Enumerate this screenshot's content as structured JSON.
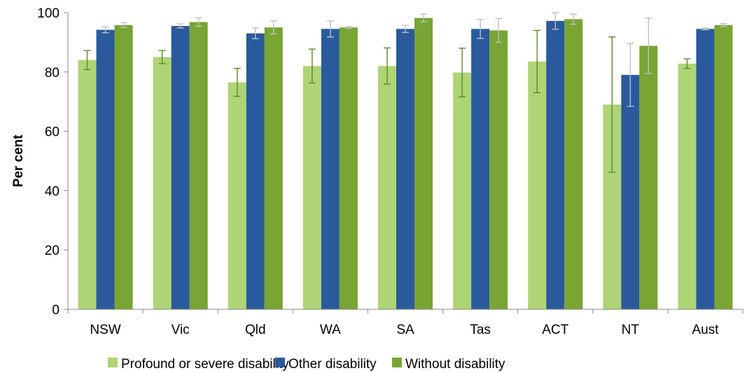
{
  "chart_data": {
    "type": "bar",
    "title": "",
    "xlabel": "",
    "ylabel": "Per cent",
    "ylim": [
      0,
      100
    ],
    "yticks": [
      0,
      20,
      40,
      60,
      80,
      100
    ],
    "grid": false,
    "legend_position": "bottom",
    "categories": [
      "NSW",
      "Vic",
      "Qld",
      "WA",
      "SA",
      "Tas",
      "ACT",
      "NT",
      "Aust"
    ],
    "series": [
      {
        "name": "Profound or severe disability",
        "color": "#AED475",
        "error_color": "#5A8A2A",
        "values": [
          84.0,
          85.0,
          76.5,
          82.0,
          82.0,
          79.8,
          83.5,
          69.0,
          82.8
        ],
        "errors": [
          3.2,
          2.2,
          4.7,
          5.7,
          6.1,
          8.2,
          10.5,
          22.8,
          1.6
        ]
      },
      {
        "name": "Other disability",
        "color": "#2A5A9C",
        "error_color": "#BFBFBF",
        "values": [
          94.2,
          95.5,
          93.0,
          94.5,
          94.5,
          94.5,
          97.2,
          79.0,
          94.5
        ],
        "errors": [
          1.0,
          0.7,
          1.8,
          2.7,
          1.2,
          3.2,
          2.8,
          10.6,
          0.3
        ]
      },
      {
        "name": "Without disability",
        "color": "#78A533",
        "error_color": "#BFBFBF",
        "values": [
          95.8,
          96.8,
          95.0,
          95.0,
          98.2,
          94.0,
          97.8,
          88.8,
          95.8
        ],
        "errors": [
          0.8,
          1.4,
          2.2,
          0.3,
          1.3,
          4.0,
          1.7,
          9.3,
          0.5
        ]
      }
    ]
  }
}
